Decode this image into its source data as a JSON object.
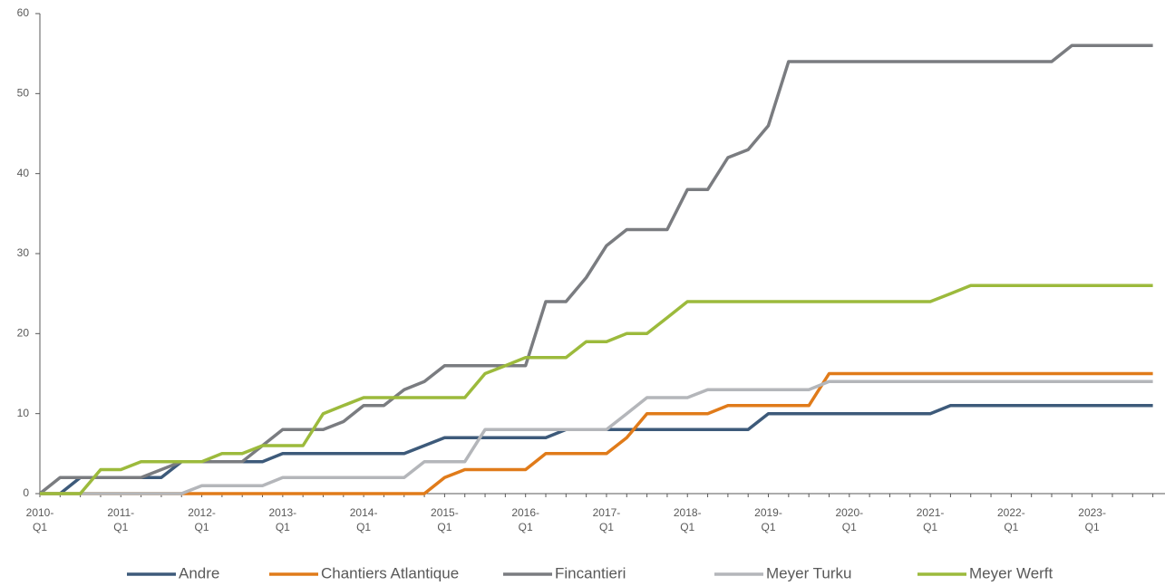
{
  "chart_data": {
    "type": "line",
    "categories": [
      "2010-\nQ1",
      null,
      null,
      null,
      "2011-\nQ1",
      null,
      null,
      null,
      "2012-\nQ1",
      null,
      null,
      null,
      "2013-\nQ1",
      null,
      null,
      null,
      "2014-\nQ1",
      null,
      null,
      null,
      "2015-\nQ1",
      null,
      null,
      null,
      "2016-\nQ1",
      null,
      null,
      null,
      "2017-\nQ1",
      null,
      null,
      null,
      "2018-\nQ1",
      null,
      null,
      null,
      "2019-\nQ1",
      null,
      null,
      null,
      "2020-\nQ1",
      null,
      null,
      null,
      "2021-\nQ1",
      null,
      null,
      null,
      "2022-\nQ1",
      null,
      null,
      null,
      "2023-\nQ1",
      null,
      null,
      null
    ],
    "series": [
      {
        "name": "Andre",
        "color": "#3d5a7a",
        "values": [
          0,
          0,
          2,
          2,
          2,
          2,
          2,
          4,
          4,
          4,
          4,
          4,
          5,
          5,
          5,
          5,
          5,
          5,
          5,
          6,
          7,
          7,
          7,
          7,
          7,
          7,
          8,
          8,
          8,
          8,
          8,
          8,
          8,
          8,
          8,
          8,
          10,
          10,
          10,
          10,
          10,
          10,
          10,
          10,
          10,
          11,
          11,
          11,
          11,
          11,
          11,
          11,
          11,
          11,
          11,
          11
        ]
      },
      {
        "name": "Chantiers Atlantique",
        "color": "#e07b1a",
        "values": [
          0,
          0,
          0,
          0,
          0,
          0,
          0,
          0,
          0,
          0,
          0,
          0,
          0,
          0,
          0,
          0,
          0,
          0,
          0,
          0,
          2,
          3,
          3,
          3,
          3,
          5,
          5,
          5,
          5,
          7,
          10,
          10,
          10,
          10,
          11,
          11,
          11,
          11,
          11,
          15,
          15,
          15,
          15,
          15,
          15,
          15,
          15,
          15,
          15,
          15,
          15,
          15,
          15,
          15,
          15,
          15
        ]
      },
      {
        "name": "Fincantieri",
        "color": "#7a7c80",
        "values": [
          0,
          2,
          2,
          2,
          2,
          2,
          3,
          4,
          4,
          4,
          4,
          6,
          8,
          8,
          8,
          9,
          11,
          11,
          13,
          14,
          16,
          16,
          16,
          16,
          16,
          24,
          24,
          27,
          31,
          33,
          33,
          33,
          38,
          38,
          42,
          43,
          46,
          54,
          54,
          54,
          54,
          54,
          54,
          54,
          54,
          54,
          54,
          54,
          54,
          54,
          54,
          56,
          56,
          56,
          56,
          56
        ]
      },
      {
        "name": "Meyer Turku",
        "color": "#b4b6ba",
        "values": [
          0,
          0,
          0,
          0,
          0,
          0,
          0,
          0,
          1,
          1,
          1,
          1,
          2,
          2,
          2,
          2,
          2,
          2,
          2,
          4,
          4,
          4,
          8,
          8,
          8,
          8,
          8,
          8,
          8,
          10,
          12,
          12,
          12,
          13,
          13,
          13,
          13,
          13,
          13,
          14,
          14,
          14,
          14,
          14,
          14,
          14,
          14,
          14,
          14,
          14,
          14,
          14,
          14,
          14,
          14,
          14
        ]
      },
      {
        "name": "Meyer Werft",
        "color": "#9cba3c",
        "values": [
          0,
          0,
          0,
          3,
          3,
          4,
          4,
          4,
          4,
          5,
          5,
          6,
          6,
          6,
          10,
          11,
          12,
          12,
          12,
          12,
          12,
          12,
          15,
          16,
          17,
          17,
          17,
          19,
          19,
          20,
          20,
          22,
          24,
          24,
          24,
          24,
          24,
          24,
          24,
          24,
          24,
          24,
          24,
          24,
          24,
          25,
          26,
          26,
          26,
          26,
          26,
          26,
          26,
          26,
          26,
          26
        ]
      }
    ],
    "ylim": [
      0,
      60
    ],
    "yticks": [
      0,
      10,
      20,
      30,
      40,
      50,
      60
    ],
    "grid": false,
    "legend": "bottom"
  }
}
